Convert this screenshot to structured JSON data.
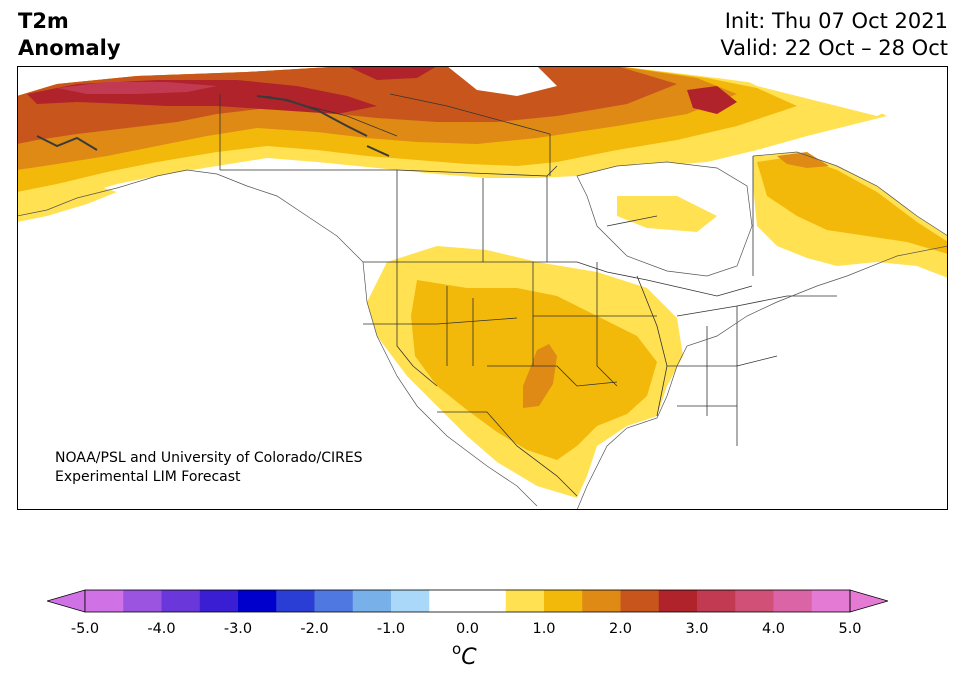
{
  "header": {
    "title_line1": "T2m",
    "title_line2": "Anomaly",
    "init": "Init: Thu 07 Oct 2021",
    "valid": "Valid: 22 Oct – 28 Oct"
  },
  "credit": {
    "line1": "NOAA/PSL and University of Colorado/CIRES",
    "line2": "Experimental LIM Forecast"
  },
  "colorbar": {
    "unit_sup": "o",
    "unit_main": "C",
    "ticks": [
      "-5.0",
      "-4.0",
      "-3.0",
      "-2.0",
      "-1.0",
      "0.0",
      "1.0",
      "2.0",
      "3.0",
      "4.0",
      "5.0"
    ],
    "bins": [
      "#d072e6",
      "#9b54e0",
      "#6a38da",
      "#3a1ed4",
      "#0000cc",
      "#2a3ed6",
      "#4f78e0",
      "#78b0ea",
      "#aad8f8",
      "#ffffff",
      "#ffffff",
      "#ffe152",
      "#f2b90a",
      "#de8a14",
      "#c8561c",
      "#b0232a",
      "#c23a52",
      "#d05078",
      "#da64a6",
      "#e47ad4"
    ],
    "under_color": "#d072e6",
    "over_color": "#e47ad4"
  },
  "legend_colors": {
    "anomaly_0_5_to_1": "#ffe152",
    "anomaly_1_to_1_5": "#f2b90a",
    "anomaly_1_5_to_2": "#de8a14",
    "anomaly_2_to_2_5": "#c8561c",
    "anomaly_2_5_to_3": "#b0232a",
    "anomaly_3_to_3_5": "#c23a52"
  }
}
